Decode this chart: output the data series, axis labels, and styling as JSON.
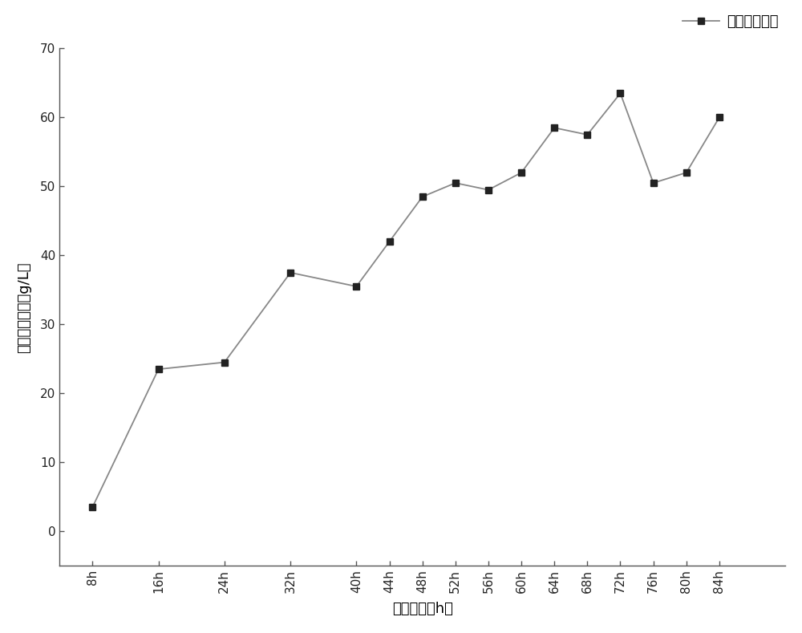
{
  "x_labels": [
    "8h",
    "16h",
    "24h",
    "32h",
    "40h",
    "44h",
    "48h",
    "52h",
    "56h",
    "60h",
    "64h",
    "68h",
    "72h",
    "76h",
    "80h",
    "84h"
  ],
  "x_values": [
    8,
    16,
    24,
    32,
    40,
    44,
    48,
    52,
    56,
    60,
    64,
    68,
    72,
    76,
    80,
    84
  ],
  "y_values": [
    3.5,
    23.5,
    24.5,
    37.5,
    35.5,
    42.0,
    48.5,
    50.5,
    49.5,
    52.0,
    58.5,
    57.5,
    63.5,
    50.5,
    52.0,
    60.0
  ],
  "ylabel": "高丝氨酸含量（g/L）",
  "xlabel": "发酵时间（h）",
  "legend_label": "高丝氨酸含量",
  "ylim": [
    -5,
    70
  ],
  "yticks": [
    0,
    10,
    20,
    30,
    40,
    50,
    60,
    70
  ],
  "line_color": "#888888",
  "marker_color": "#222222",
  "background_color": "#ffffff",
  "linewidth": 1.3,
  "markersize": 6
}
